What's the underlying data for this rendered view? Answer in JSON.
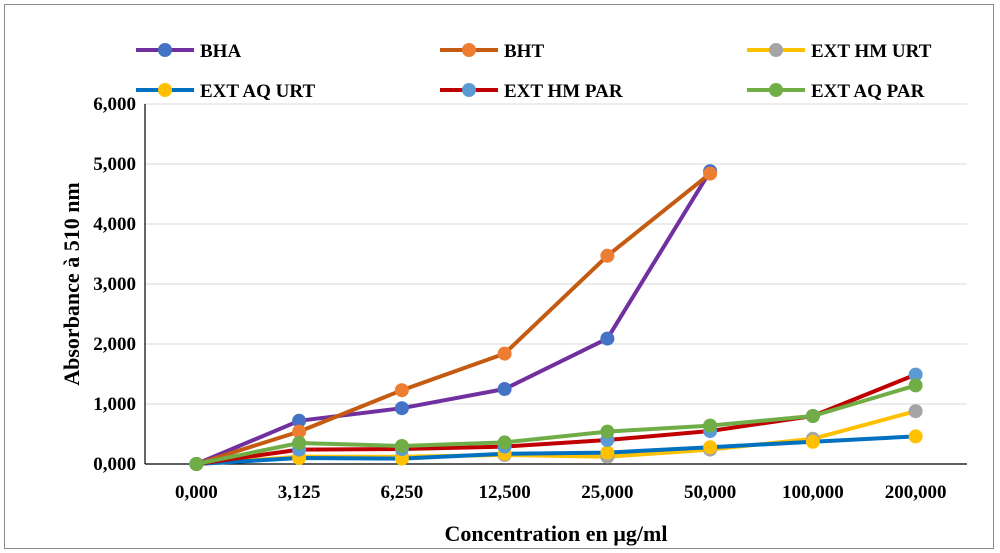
{
  "chart_data": {
    "type": "line",
    "title": "",
    "xlabel": "Concentration en µg/ml",
    "ylabel": "Absorbance à 510 nm",
    "categories": [
      "0,000",
      "3,125",
      "6,250",
      "12,500",
      "25,000",
      "50,000",
      "100,000",
      "200,000"
    ],
    "ylim": [
      0,
      6
    ],
    "yticks": [
      0,
      1,
      2,
      3,
      4,
      5,
      6
    ],
    "ytick_labels": [
      "0,000",
      "1,000",
      "2,000",
      "3,000",
      "4,000",
      "5,000",
      "6,000"
    ],
    "grid": "horizontal",
    "legend_position": "top",
    "series": [
      {
        "name": "BHA",
        "line_color": "#7030a0",
        "marker_color": "#4472c4",
        "values": [
          0.0,
          0.72,
          0.93,
          1.25,
          2.09,
          4.88,
          null,
          null
        ]
      },
      {
        "name": "BHT",
        "line_color": "#c55a11",
        "marker_color": "#ed7d31",
        "values": [
          0.0,
          0.54,
          1.23,
          1.84,
          3.47,
          4.84,
          null,
          null
        ]
      },
      {
        "name": "EXT HM URT",
        "line_color": "#ffc000",
        "marker_color": "#a5a5a5",
        "values": [
          0.0,
          0.12,
          0.12,
          0.15,
          0.12,
          0.24,
          0.42,
          0.88
        ]
      },
      {
        "name": "EXT AQ URT",
        "line_color": "#0070c0",
        "marker_color": "#ffc000",
        "values": [
          0.0,
          0.1,
          0.09,
          0.17,
          0.19,
          0.28,
          0.37,
          0.46
        ]
      },
      {
        "name": "EXT HM PAR",
        "line_color": "#c00000",
        "marker_color": "#5b9bd5",
        "values": [
          0.0,
          0.24,
          0.25,
          0.29,
          0.4,
          0.55,
          0.8,
          1.49
        ]
      },
      {
        "name": "EXT AQ PAR",
        "line_color": "#70ad47",
        "marker_color": "#70ad47",
        "values": [
          0.0,
          0.35,
          0.3,
          0.36,
          0.54,
          0.64,
          0.8,
          1.31
        ]
      }
    ]
  }
}
